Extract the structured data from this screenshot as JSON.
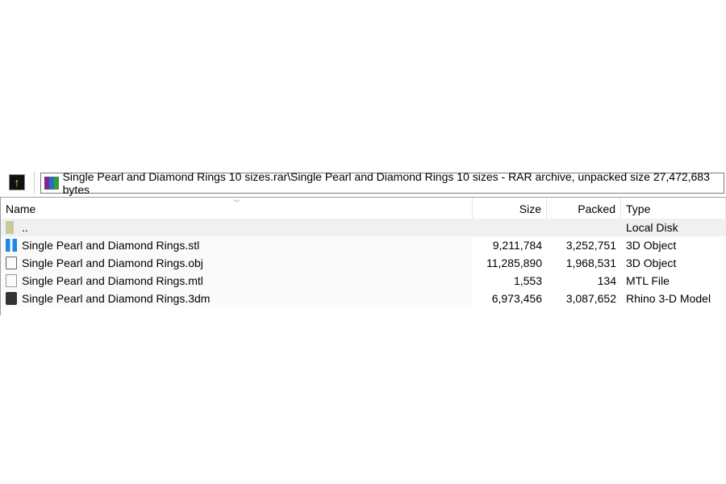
{
  "toolbar": {
    "up_icon": "up-folder-icon",
    "address": "Single Pearl and Diamond Rings 10 sizes.rar\\Single Pearl and Diamond Rings 10 sizes - RAR archive, unpacked size 27,472,683 bytes"
  },
  "columns": [
    "Name",
    "Size",
    "Packed",
    "Type"
  ],
  "rows": [
    {
      "name": "..",
      "size": "",
      "packed": "",
      "type": "Local Disk",
      "icon": "parent-folder-icon"
    },
    {
      "name": "Single Pearl and Diamond Rings.stl",
      "size": "9,211,784",
      "packed": "3,252,751",
      "type": "3D Object",
      "icon": "stl-file-icon"
    },
    {
      "name": "Single Pearl and Diamond Rings.obj",
      "size": "11,285,890",
      "packed": "1,968,531",
      "type": "3D Object",
      "icon": "obj-file-icon"
    },
    {
      "name": "Single Pearl and Diamond Rings.mtl",
      "size": "1,553",
      "packed": "134",
      "type": "MTL File",
      "icon": "file-icon"
    },
    {
      "name": "Single Pearl and Diamond Rings.3dm",
      "size": "6,973,456",
      "packed": "3,087,652",
      "type": "Rhino 3-D Model",
      "icon": "rhino-file-icon"
    }
  ]
}
